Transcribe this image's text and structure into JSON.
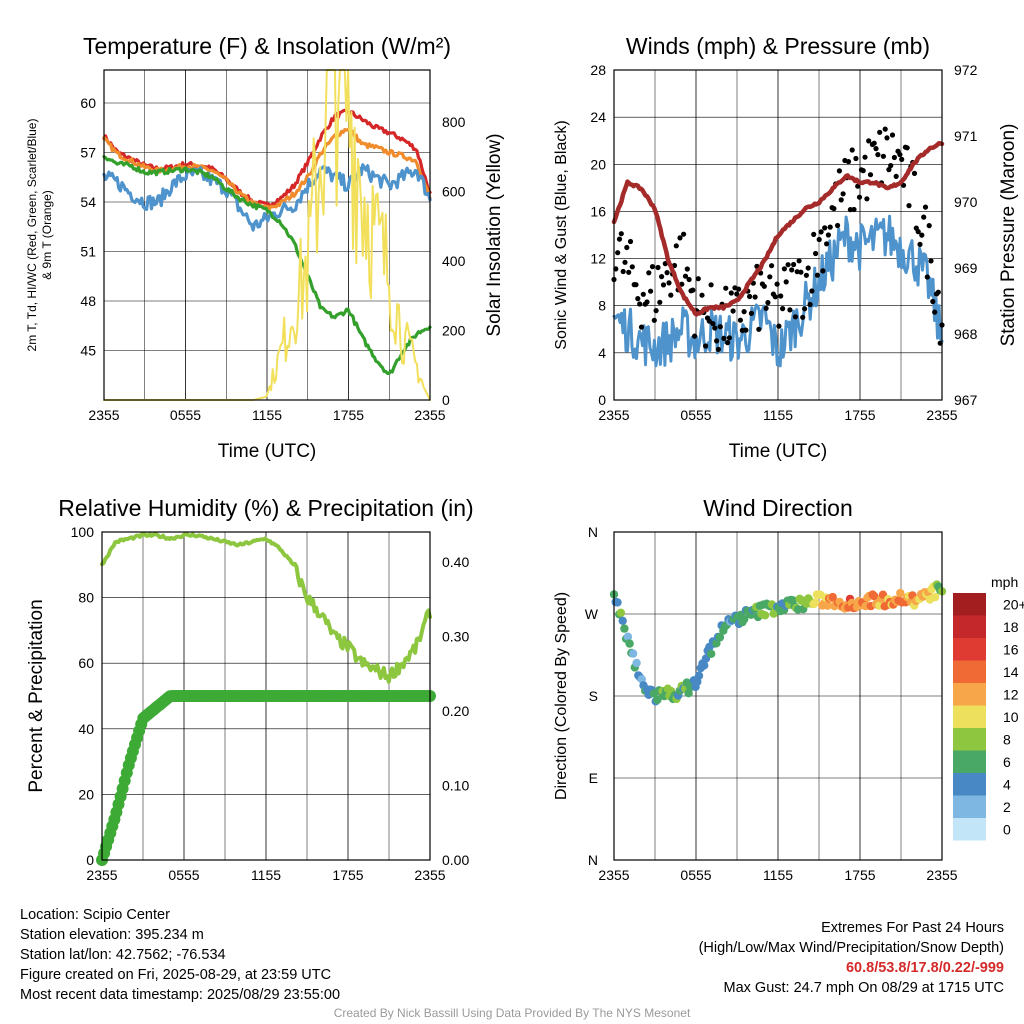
{
  "chart_data": [
    {
      "type": "line",
      "title": "Temperature (F) & Insolation (W/m²)",
      "xlabel": "Time (UTC)",
      "ylabel": "2m T, Td, HI/WC (Red, Green, Scarlet/Blue) & 9m T (Orange)",
      "y2label": "Solar Insolation (Yellow)",
      "x_ticks": [
        "2355",
        "0555",
        "1155",
        "1755",
        "2355"
      ],
      "y_ticks": [
        "45",
        "48",
        "51",
        "54",
        "57",
        "60"
      ],
      "y2_ticks": [
        "0",
        "200",
        "400",
        "600",
        "800"
      ],
      "ylim": [
        42,
        62
      ],
      "y2lim": [
        0,
        950
      ],
      "grid": true,
      "x_hours": [
        0,
        1,
        2,
        3,
        4,
        5,
        6,
        7,
        8,
        9,
        10,
        11,
        12,
        13,
        14,
        15,
        16,
        17,
        18,
        19,
        20,
        21,
        22,
        23,
        24
      ],
      "series": [
        {
          "axis": "left",
          "color": "#d62728",
          "values": [
            58.0,
            57.0,
            56.6,
            56.2,
            56.0,
            56.1,
            56.3,
            56.2,
            56.0,
            55.4,
            54.6,
            54.0,
            53.8,
            54.2,
            55.0,
            56.4,
            58.0,
            59.2,
            59.5,
            59.0,
            58.5,
            58.2,
            57.8,
            57.2,
            54.5
          ]
        },
        {
          "axis": "left",
          "color": "#f08c2c",
          "values": [
            57.8,
            56.9,
            56.5,
            56.1,
            55.9,
            56.0,
            56.2,
            56.1,
            55.9,
            55.3,
            54.5,
            53.9,
            53.6,
            53.9,
            54.5,
            55.5,
            57.0,
            58.0,
            58.5,
            57.5,
            57.3,
            57.0,
            56.8,
            56.5,
            54.2
          ]
        },
        {
          "axis": "left",
          "color": "#4e93cc",
          "values": [
            55.5,
            55.2,
            54.5,
            54.0,
            54.0,
            55.0,
            55.6,
            55.7,
            55.3,
            54.8,
            53.6,
            52.5,
            53.0,
            53.5,
            53.8,
            55.0,
            56.0,
            55.5,
            55.0,
            56.0,
            55.5,
            55.0,
            55.5,
            56.0,
            54.2
          ]
        },
        {
          "axis": "left",
          "color": "#33a02c",
          "values": [
            56.8,
            56.3,
            56.2,
            55.8,
            55.8,
            55.9,
            56.0,
            55.8,
            55.5,
            54.8,
            54.2,
            53.8,
            53.5,
            52.8,
            51.5,
            49.5,
            47.5,
            47.0,
            47.5,
            45.8,
            44.5,
            43.5,
            45.0,
            46.0,
            46.5
          ]
        },
        {
          "axis": "right",
          "color": "#f2e05c",
          "values": [
            0,
            0,
            0,
            0,
            0,
            0,
            0,
            0,
            0,
            0,
            0,
            0,
            10,
            110,
            220,
            320,
            600,
            850,
            700,
            500,
            380,
            300,
            150,
            80,
            0
          ]
        }
      ]
    },
    {
      "type": "line",
      "title": "Winds (mph) & Pressure (mb)",
      "xlabel": "Time (UTC)",
      "ylabel": "Sonic Wind & Gust (Blue, Black)",
      "y2label": "Station Pressure (Maroon)",
      "x_ticks": [
        "2355",
        "0555",
        "1155",
        "1755",
        "2355"
      ],
      "y_ticks": [
        "0",
        "4",
        "8",
        "12",
        "16",
        "20",
        "24",
        "28"
      ],
      "y2_ticks": [
        "967",
        "968",
        "969",
        "970",
        "971",
        "972"
      ],
      "ylim": [
        0,
        28
      ],
      "y2lim": [
        967,
        972
      ],
      "grid": true,
      "x_hours": [
        0,
        1,
        2,
        3,
        4,
        5,
        6,
        7,
        8,
        9,
        10,
        11,
        12,
        13,
        14,
        15,
        16,
        17,
        18,
        19,
        20,
        21,
        22,
        23,
        24
      ],
      "series": [
        {
          "axis": "left",
          "color": "#4e93cc",
          "values": [
            7,
            6,
            5,
            4.5,
            5,
            6,
            5,
            6,
            5.5,
            5,
            6,
            7,
            4,
            6,
            8,
            10,
            12,
            14,
            13,
            13.5,
            14,
            13,
            12,
            10,
            5
          ]
        },
        {
          "axis": "left",
          "color": "#000000",
          "points": true,
          "values": [
            13,
            11,
            9,
            9,
            11,
            12,
            8,
            7,
            6.5,
            7,
            8,
            9,
            8,
            9.5,
            10,
            13,
            16,
            18,
            19,
            20,
            21,
            20,
            17,
            13,
            7
          ]
        },
        {
          "axis": "right",
          "color": "#a52a2a",
          "values": [
            969.7,
            970.3,
            970.2,
            969.9,
            969.1,
            968.6,
            968.3,
            968.4,
            968.4,
            968.5,
            968.8,
            969.1,
            969.5,
            969.7,
            969.9,
            970.0,
            970.2,
            970.4,
            970.3,
            970.3,
            970.2,
            970.3,
            970.6,
            970.8,
            970.9
          ]
        }
      ]
    },
    {
      "type": "line",
      "title": "Relative Humidity (%) & Precipitation (in)",
      "xlabel": "",
      "ylabel": "Percent & Precipitation",
      "x_ticks": [
        "2355",
        "0555",
        "1155",
        "1755",
        "2355"
      ],
      "y_ticks": [
        "0",
        "20",
        "40",
        "60",
        "80",
        "100"
      ],
      "y2_ticks": [
        "0.00",
        "0.10",
        "0.20",
        "0.30",
        "0.40"
      ],
      "ylim": [
        0,
        100
      ],
      "y2lim": [
        0,
        0.44
      ],
      "grid": true,
      "x_hours": [
        0,
        1,
        2,
        3,
        4,
        5,
        6,
        7,
        8,
        9,
        10,
        11,
        12,
        13,
        14,
        15,
        16,
        17,
        18,
        19,
        20,
        21,
        22,
        23,
        24
      ],
      "series": [
        {
          "axis": "left",
          "color": "#8dc63f",
          "values": [
            90,
            97,
            98,
            99,
            99,
            98,
            99,
            99,
            98,
            97,
            96,
            97,
            98,
            95,
            90,
            80,
            75,
            68,
            65,
            60,
            58,
            56,
            60,
            65,
            76
          ]
        },
        {
          "axis": "right",
          "color": "#3daa35",
          "thick": true,
          "values": [
            0.0,
            0.06,
            0.13,
            0.19,
            0.205,
            0.22,
            0.22,
            0.22,
            0.22,
            0.22,
            0.22,
            0.22,
            0.22,
            0.22,
            0.22,
            0.22,
            0.22,
            0.22,
            0.22,
            0.22,
            0.22,
            0.22,
            0.22,
            0.22,
            0.22
          ]
        }
      ]
    },
    {
      "type": "scatter",
      "title": "Wind Direction",
      "ylabel": "Direction (Colored By Speed)",
      "x_ticks": [
        "2355",
        "0555",
        "1155",
        "1755",
        "2355"
      ],
      "y_ticks": [
        "N",
        "E",
        "S",
        "W",
        "N"
      ],
      "ylim": [
        0,
        360
      ],
      "grid": true,
      "x_hours": [
        0,
        1,
        2,
        3,
        4,
        5,
        6,
        7,
        8,
        9,
        10,
        11,
        12,
        13,
        14,
        15,
        16,
        17,
        18,
        19,
        20,
        21,
        22,
        23,
        24
      ],
      "direction_deg": [
        290,
        240,
        195,
        180,
        182,
        185,
        195,
        230,
        255,
        265,
        270,
        275,
        278,
        280,
        282,
        285,
        285,
        282,
        283,
        285,
        285,
        288,
        285,
        290,
        300
      ],
      "speed_mph": [
        7,
        4,
        4,
        5,
        7,
        6,
        5,
        4,
        4,
        5,
        5,
        8,
        6,
        6,
        8,
        10,
        12,
        14,
        13,
        13,
        12,
        13,
        12,
        11,
        6
      ],
      "colorbar": {
        "title": "mph",
        "labels": [
          "20+",
          "18",
          "16",
          "14",
          "12",
          "10",
          "8",
          "6",
          "4",
          "2",
          "0"
        ],
        "colors": [
          "#a31f1f",
          "#c5282b",
          "#e03b32",
          "#f06a35",
          "#f7a649",
          "#ece05c",
          "#8ec63f",
          "#4aa866",
          "#4889c5",
          "#7db7e2",
          "#c2e6f8"
        ]
      }
    }
  ],
  "info": {
    "location": "Location: Scipio Center",
    "elevation": "Station elevation: 395.234 m",
    "latlon": "Station lat/lon: 42.7562; -76.534",
    "created": "Figure created on Fri, 2025-08-29, at 23:59 UTC",
    "recent": "Most recent data timestamp: 2025/08/29 23:55:00"
  },
  "extremes": {
    "title": "Extremes For Past 24 Hours",
    "subtitle": "(High/Low/Max Wind/Precipitation/Snow Depth)",
    "values": "60.8/53.8/17.8/0.22/-999",
    "max_gust": "Max Gust: 24.7 mph On 08/29 at 1715 UTC"
  },
  "credit": "Created By Nick Bassill Using Data Provided By The NYS Mesonet"
}
